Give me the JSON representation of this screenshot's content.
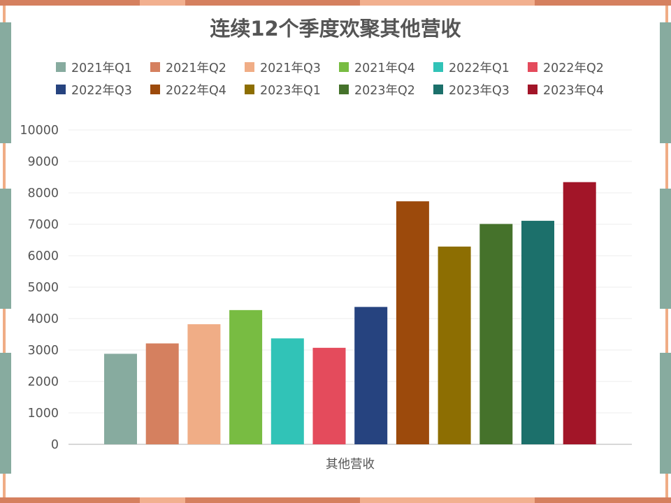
{
  "chart_data": {
    "type": "bar",
    "title": "连续12个季度欢聚其他营收",
    "xlabel": "其他营收",
    "ylabel": "",
    "categories": [
      "其他营收"
    ],
    "ylim": [
      0,
      10000
    ],
    "yticks": [
      0,
      1000,
      2000,
      3000,
      4000,
      5000,
      6000,
      7000,
      8000,
      9000,
      10000
    ],
    "grid": true,
    "legend_position": "top",
    "series": [
      {
        "name": "2021年Q1",
        "values": [
          2880
        ],
        "color": "#87ab9f"
      },
      {
        "name": "2021年Q2",
        "values": [
          3210
        ],
        "color": "#d5805f"
      },
      {
        "name": "2021年Q3",
        "values": [
          3820
        ],
        "color": "#f0ad86"
      },
      {
        "name": "2021年Q4",
        "values": [
          4270
        ],
        "color": "#78bc42"
      },
      {
        "name": "2022年Q1",
        "values": [
          3370
        ],
        "color": "#31c3b7"
      },
      {
        "name": "2022年Q2",
        "values": [
          3070
        ],
        "color": "#e44b5c"
      },
      {
        "name": "2022年Q3",
        "values": [
          4370
        ],
        "color": "#26437f"
      },
      {
        "name": "2022年Q4",
        "values": [
          7730
        ],
        "color": "#9c4a0c"
      },
      {
        "name": "2023年Q1",
        "values": [
          6290
        ],
        "color": "#8d6e02"
      },
      {
        "name": "2023年Q2",
        "values": [
          7010
        ],
        "color": "#45722b"
      },
      {
        "name": "2023年Q3",
        "values": [
          7110
        ],
        "color": "#1c706b"
      },
      {
        "name": "2023年Q4",
        "values": [
          8340
        ],
        "color": "#a21528"
      }
    ]
  },
  "frame_colors": {
    "top_bottom": "#d5805f",
    "top_bottom_light": "#f2b08f",
    "sides": "#87ab9f",
    "inner_border": "#f0ad86"
  }
}
